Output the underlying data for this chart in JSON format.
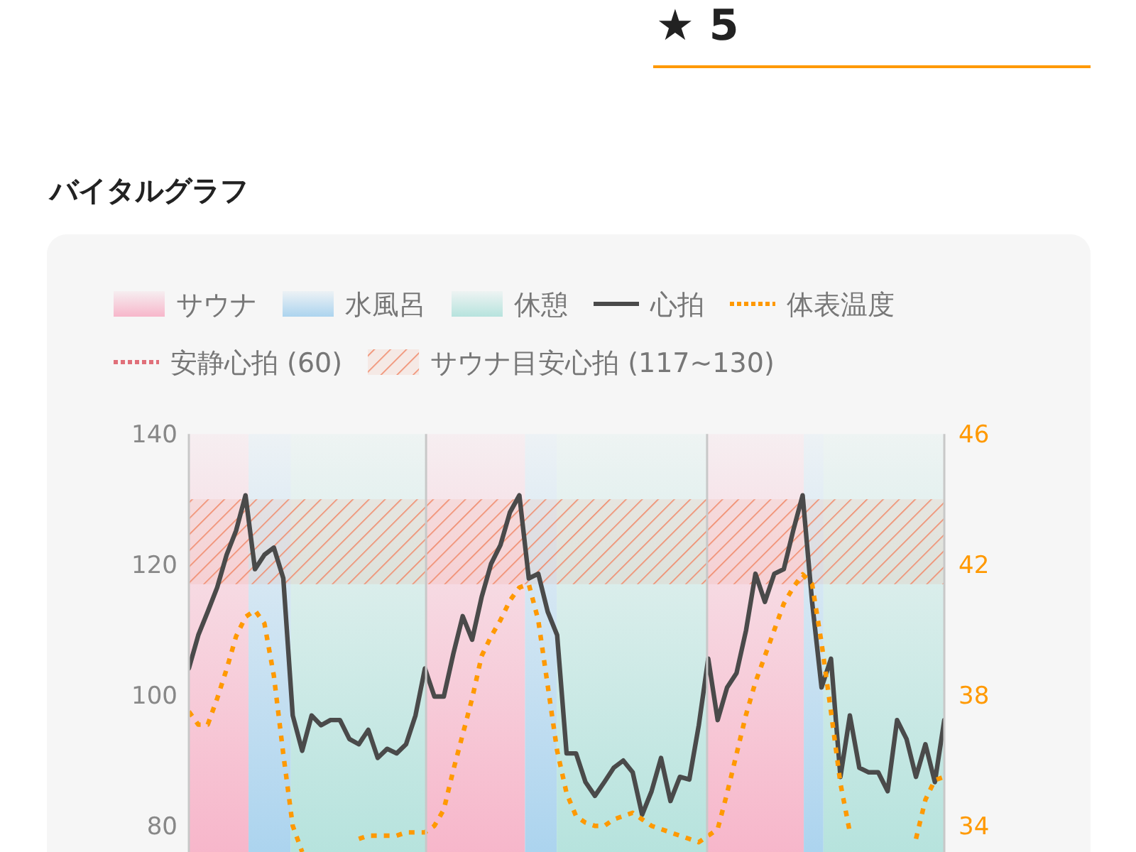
{
  "chart_data": {
    "type": "line",
    "title": "バイタルグラフ",
    "annotations": [
      "★ 5",
      "サウナ",
      "水風呂",
      "休憩"
    ],
    "categories": [
      null,
      null,
      null,
      null,
      null,
      null,
      null,
      null,
      null,
      null,
      null,
      null,
      null,
      null,
      null,
      null,
      null,
      null,
      null,
      null,
      null,
      null,
      null,
      null,
      null,
      null,
      null,
      null,
      null,
      null,
      null,
      null,
      null,
      null,
      null,
      null,
      null,
      null,
      null,
      null,
      null,
      null,
      null,
      null,
      null,
      null,
      null,
      null,
      null,
      null,
      null,
      null,
      null,
      null,
      null,
      null,
      null,
      null,
      null,
      null,
      null,
      null,
      null,
      null,
      null,
      null,
      null,
      null,
      null,
      null,
      null,
      null,
      null,
      null,
      null,
      null,
      null,
      null,
      null,
      null,
      null
    ],
    "ylim": [
      76,
      140
    ],
    "yticks": [
      80,
      100,
      120,
      140
    ],
    "y2lim": [
      33.2,
      46
    ],
    "y2ticks": [
      34,
      38,
      42,
      46
    ],
    "legend": "top",
    "series": [
      {
        "name": "心拍",
        "color": "#4a4a4a",
        "values": [
          104.1,
          109.2,
          112.8,
          116.5,
          121.5,
          125.2,
          130.6,
          119.3,
          121.5,
          122.6,
          117.9,
          96.9,
          91.5,
          96.9,
          95.4,
          96.2,
          96.2,
          93.3,
          92.5,
          94.7,
          90.4,
          91.8,
          91.1,
          92.5,
          96.9,
          104.1,
          99.8,
          99.8,
          106.3,
          112.1,
          108.5,
          115.0,
          120.1,
          123.0,
          128.0,
          130.6,
          117.9,
          118.6,
          112.8,
          109.2,
          91.1,
          91.1,
          86.7,
          84.6,
          86.7,
          88.9,
          90.0,
          88.2,
          81.7,
          85.3,
          90.4,
          83.8,
          87.5,
          87.1,
          95.4,
          105.6,
          96.2,
          101.2,
          103.4,
          109.9,
          118.6,
          114.3,
          118.6,
          119.3,
          125.2,
          130.6,
          114.3,
          101.2,
          105.6,
          87.5,
          96.9,
          88.9,
          88.2,
          88.2,
          85.3,
          96.2,
          93.3,
          87.5,
          92.5,
          86.7,
          96.2
        ]
      },
      {
        "name": "体表温度",
        "color": "#ff9900",
        "axis": "y2",
        "line_style": "dotted",
        "values": [
          37.5,
          37.1,
          37.1,
          37.9,
          38.8,
          39.8,
          40.4,
          40.6,
          40.2,
          38.6,
          36.2,
          34.0,
          33.2,
          null,
          null,
          null,
          null,
          null,
          33.6,
          33.7,
          33.7,
          33.7,
          33.7,
          33.8,
          33.8,
          33.8,
          34.0,
          34.5,
          35.7,
          36.8,
          37.9,
          39.2,
          39.8,
          40.3,
          40.9,
          41.3,
          41.4,
          40.3,
          38.3,
          36.3,
          35.0,
          34.3,
          34.1,
          34.0,
          34.0,
          34.2,
          34.3,
          34.4,
          34.2,
          34.0,
          33.9,
          33.8,
          33.7,
          33.6,
          33.5,
          33.7,
          33.9,
          35.0,
          36.2,
          37.4,
          38.4,
          39.2,
          40.0,
          40.8,
          41.3,
          41.7,
          41.4,
          39.6,
          37.5,
          35.3,
          33.8,
          null,
          null,
          null,
          null,
          null,
          null,
          33.6,
          34.8,
          35.4,
          35.5
        ]
      }
    ],
    "bands": [
      {
        "axis": "y",
        "from": 117,
        "to": 130,
        "label": "サウナ目安心拍 (117~130)",
        "color": "#f08a6a"
      }
    ],
    "ref_lines": [
      {
        "axis": "y",
        "label": "安静心拍 (60)",
        "color": "#e0707a",
        "line_style": "dotted"
      }
    ]
  }
}
